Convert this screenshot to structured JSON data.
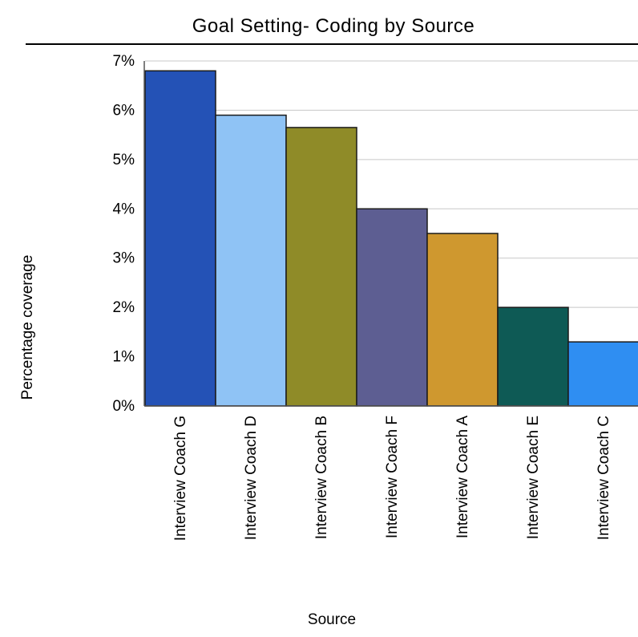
{
  "chart_data": {
    "type": "bar",
    "title": "Goal Setting- Coding by Source",
    "xlabel": "Source",
    "ylabel": "Percentage coverage",
    "categories": [
      "Interview Coach G",
      "Interview Coach D",
      "Interview Coach B",
      "Interview Coach F",
      "Interview Coach A",
      "Interview Coach E",
      "Interview Coach C"
    ],
    "values": [
      6.8,
      5.9,
      5.65,
      4.0,
      3.5,
      2.0,
      1.3
    ],
    "value_unit": "%",
    "ylim": [
      0,
      7
    ],
    "yticks": [
      "0%",
      "1%",
      "2%",
      "3%",
      "4%",
      "5%",
      "6%",
      "7%"
    ],
    "grid": true,
    "colors": [
      "#2452b6",
      "#8fc3f5",
      "#8f8b28",
      "#5d5e92",
      "#cf982f",
      "#0e5a55",
      "#2f8ef2"
    ]
  }
}
